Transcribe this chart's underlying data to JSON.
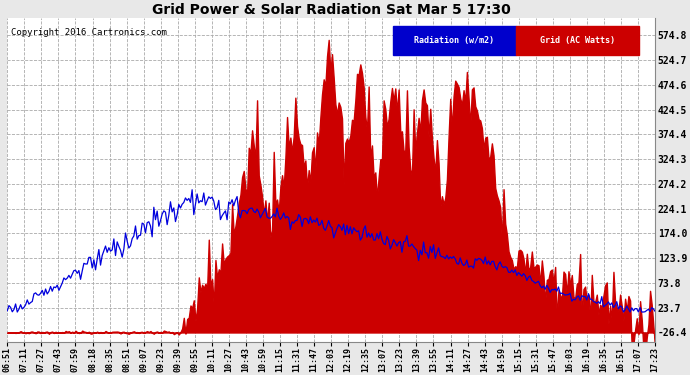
{
  "title": "Grid Power & Solar Radiation Sat Mar 5 17:30",
  "copyright": "Copyright 2016 Cartronics.com",
  "legend_radiation": "Radiation (w/m2)",
  "legend_grid": "Grid (AC Watts)",
  "yticks": [
    574.8,
    524.7,
    474.6,
    424.5,
    374.4,
    324.3,
    274.2,
    224.1,
    174.0,
    123.9,
    73.8,
    23.7,
    -26.4
  ],
  "ylim": [
    -45,
    610
  ],
  "background_color": "#f0f0f0",
  "plot_bg_color": "#ffffff",
  "radiation_color": "#0000dd",
  "grid_fill_color": "#cc0000",
  "x_labels": [
    "06:51",
    "07:11",
    "07:27",
    "07:43",
    "07:59",
    "08:18",
    "08:35",
    "08:51",
    "09:07",
    "09:23",
    "09:39",
    "09:55",
    "10:11",
    "10:27",
    "10:43",
    "10:59",
    "11:15",
    "11:31",
    "11:47",
    "12:03",
    "12:19",
    "12:35",
    "13:07",
    "13:23",
    "13:39",
    "13:55",
    "14:11",
    "14:27",
    "14:43",
    "14:59",
    "15:15",
    "15:31",
    "15:47",
    "16:03",
    "16:19",
    "16:35",
    "16:51",
    "17:07",
    "17:23"
  ]
}
